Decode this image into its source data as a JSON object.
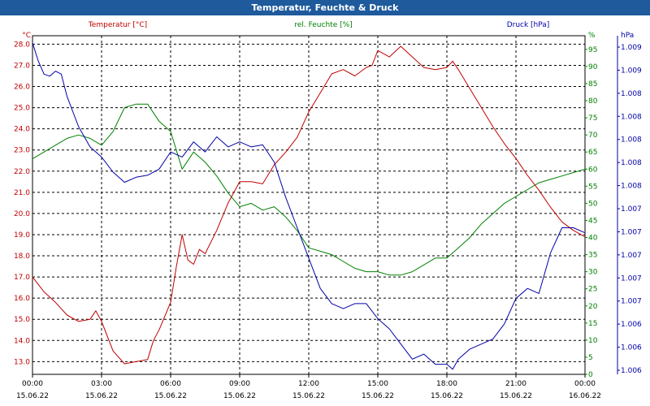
{
  "title": "Temperatur, Feuchte & Druck",
  "colors": {
    "titlebar": "#1e5a9c",
    "temperature": "#c00000",
    "humidity": "#008000",
    "pressure": "#0000a8",
    "grid": "#000000",
    "x_labels": "#000000"
  },
  "chart_data": {
    "type": "line",
    "grid": true,
    "x_ticks": [
      {
        "time": "00:00",
        "date": "15.06.22"
      },
      {
        "time": "03:00",
        "date": "15.06.22"
      },
      {
        "time": "06:00",
        "date": "15.06.22"
      },
      {
        "time": "09:00",
        "date": "15.06.22"
      },
      {
        "time": "12:00",
        "date": "15.06.22"
      },
      {
        "time": "15:00",
        "date": "15.06.22"
      },
      {
        "time": "18:00",
        "date": "15.06.22"
      },
      {
        "time": "21:00",
        "date": "15.06.22"
      },
      {
        "time": "00:00",
        "date": "16.06.22"
      }
    ],
    "xlim": [
      0,
      24
    ],
    "temperature": {
      "name": "Temperatur [°C]",
      "unit": "°C",
      "ylim": [
        12.4,
        28.4
      ],
      "ticks": [
        "28.0",
        "27.0",
        "26.0",
        "25.0",
        "24.0",
        "23.0",
        "22.0",
        "21.0",
        "20.0",
        "19.0",
        "18.0",
        "17.0",
        "16.0",
        "15.0",
        "14.0",
        "13.0"
      ],
      "x": [
        0,
        0.5,
        1,
        1.5,
        2,
        2.5,
        2.75,
        3,
        3.5,
        4,
        4.5,
        5,
        5.25,
        5.5,
        6,
        6.25,
        6.5,
        6.75,
        7,
        7.25,
        7.5,
        8,
        8.5,
        9,
        9.5,
        10,
        10.5,
        11,
        11.5,
        12,
        12.5,
        13,
        13.5,
        14,
        14.5,
        14.75,
        15,
        15.5,
        16,
        16.5,
        17,
        17.5,
        18,
        18.25,
        18.5,
        19,
        19.5,
        20,
        20.5,
        21,
        21.5,
        22,
        22.5,
        23,
        23.5,
        24
      ],
      "y": [
        17.0,
        16.3,
        15.8,
        15.2,
        14.9,
        15.0,
        15.4,
        14.9,
        13.5,
        12.9,
        13.0,
        13.1,
        14.0,
        14.5,
        15.8,
        17.5,
        19.0,
        17.8,
        17.6,
        18.3,
        18.1,
        19.2,
        20.5,
        21.5,
        21.5,
        21.4,
        22.3,
        22.9,
        23.6,
        24.8,
        25.7,
        26.6,
        26.8,
        26.5,
        26.9,
        27.0,
        27.7,
        27.4,
        27.9,
        27.4,
        26.9,
        26.8,
        26.9,
        27.2,
        26.8,
        25.9,
        25.0,
        24.1,
        23.3,
        22.6,
        21.8,
        21.1,
        20.3,
        19.6,
        19.2,
        18.9
      ]
    },
    "humidity": {
      "name": "rel. Feuchte [%]",
      "unit": "%",
      "ylim": [
        0,
        99
      ],
      "ticks": [
        "95",
        "90",
        "85",
        "80",
        "75",
        "70",
        "65",
        "60",
        "55",
        "50",
        "45",
        "40",
        "35",
        "30",
        "25",
        "20",
        "15",
        "10",
        "5",
        "0"
      ],
      "x": [
        0,
        0.5,
        1,
        1.5,
        2,
        2.5,
        3,
        3.5,
        4,
        4.5,
        5,
        5.5,
        6,
        6.5,
        7,
        7.5,
        8,
        8.5,
        9,
        9.5,
        10,
        10.5,
        11,
        11.5,
        12,
        12.5,
        13,
        13.5,
        14,
        14.5,
        15,
        15.5,
        16,
        16.5,
        17,
        17.5,
        18,
        18.5,
        19,
        19.5,
        20,
        20.5,
        21,
        21.5,
        22,
        22.5,
        23,
        23.5,
        24
      ],
      "y": [
        63,
        65,
        67,
        69,
        70,
        69,
        67,
        71,
        78,
        79,
        79,
        74,
        71,
        60,
        65,
        62,
        58,
        53,
        49,
        50,
        48,
        49,
        46,
        42,
        37,
        36,
        35,
        33,
        31,
        30,
        30,
        29,
        29,
        30,
        32,
        34,
        34,
        37,
        40,
        44,
        47,
        50,
        52,
        54,
        56,
        57,
        58,
        59,
        60
      ]
    },
    "pressure": {
      "name": "Druck [hPa]",
      "unit": "hPa",
      "ylim": [
        1005.85,
        1009.2
      ],
      "ticks": [
        "1.009",
        "1.009",
        "1.008",
        "1.008",
        "1.008",
        "1.008",
        "1.008",
        "1.007",
        "1.007",
        "1.007",
        "1.007",
        "1.007",
        "1.006",
        "1.006",
        "1.006"
      ],
      "x": [
        0,
        0.25,
        0.5,
        0.75,
        1,
        1.25,
        1.5,
        2,
        2.5,
        3,
        3.5,
        4,
        4.5,
        5,
        5.5,
        6,
        6.5,
        7,
        7.5,
        8,
        8.5,
        9,
        9.5,
        10,
        10.5,
        11,
        11.5,
        12,
        12.5,
        13,
        13.5,
        14,
        14.5,
        15,
        15.5,
        16,
        16.5,
        17,
        17.5,
        18,
        18.25,
        18.5,
        19,
        19.5,
        20,
        20.5,
        21,
        21.5,
        22,
        22.5,
        23,
        23.5,
        24
      ],
      "y": [
        1009.13,
        1008.95,
        1008.82,
        1008.8,
        1008.85,
        1008.82,
        1008.6,
        1008.3,
        1008.1,
        1008.0,
        1007.85,
        1007.75,
        1007.8,
        1007.82,
        1007.88,
        1008.05,
        1008.0,
        1008.15,
        1008.05,
        1008.2,
        1008.1,
        1008.15,
        1008.1,
        1008.12,
        1007.95,
        1007.6,
        1007.3,
        1007.0,
        1006.7,
        1006.55,
        1006.5,
        1006.55,
        1006.55,
        1006.4,
        1006.3,
        1006.15,
        1006.0,
        1006.05,
        1005.95,
        1005.95,
        1005.9,
        1006.0,
        1006.1,
        1006.15,
        1006.2,
        1006.35,
        1006.6,
        1006.7,
        1006.65,
        1007.05,
        1007.3,
        1007.3,
        1007.25
      ]
    }
  }
}
